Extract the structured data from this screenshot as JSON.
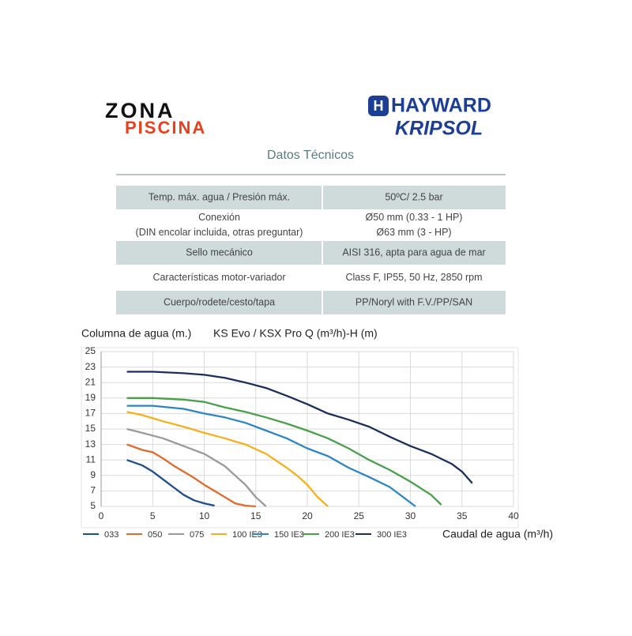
{
  "logos": {
    "left": [
      "ZONA",
      "PISCINA"
    ],
    "right": [
      "HAYWARD",
      "KRIPSOL"
    ]
  },
  "header": {
    "title": "Datos Técnicos"
  },
  "table": {
    "rows": [
      [
        [
          "Temp. máx. agua / Presión máx."
        ],
        [
          "50ºC/ 2.5 bar"
        ]
      ],
      [
        [
          "Conexión",
          "(DIN encolar incluida, otras preguntar)"
        ],
        [
          "Ø50 mm (0.33 - 1 HP)",
          "Ø63 mm (3 - HP)"
        ]
      ],
      [
        [
          "Sello mecánico"
        ],
        [
          "AISI 316, apta para agua de mar"
        ]
      ],
      [
        [
          "Características motor-variador"
        ],
        [
          "Class F, IP55, 50 Hz, 2850 rpm"
        ]
      ],
      [
        [
          "Cuerpo/rodete/cesto/tapa"
        ],
        [
          "PP/Noryl with F.V./PP/SAN"
        ]
      ]
    ]
  },
  "chart_data": {
    "type": "line",
    "title": "KS Evo / KSX Pro Q (m³/h)-H (m)",
    "y_label": "Columna de agua (m.)",
    "x_label": "Caudal de agua (m³/h)",
    "xlim": [
      0,
      40
    ],
    "ylim": [
      5,
      25
    ],
    "xticks": [
      0,
      5,
      10,
      15,
      20,
      25,
      30,
      35,
      40
    ],
    "yticks": [
      5,
      7,
      9,
      11,
      13,
      15,
      17,
      19,
      21,
      23,
      25
    ],
    "grid": true,
    "series": [
      {
        "name": "033",
        "color": "#1f4e8c",
        "x": [
          2.5,
          4,
          5,
          6,
          7,
          8,
          9,
          10,
          11
        ],
        "values": [
          11,
          10.3,
          9.5,
          8.5,
          7.5,
          6.5,
          5.8,
          5.4,
          5.1
        ]
      },
      {
        "name": "050",
        "color": "#e06a2a",
        "x": [
          2.5,
          4,
          5,
          6,
          7,
          8,
          9,
          10,
          11,
          12,
          13,
          14,
          15
        ],
        "values": [
          13,
          12.3,
          12,
          11.2,
          10.3,
          9.5,
          8.7,
          7.8,
          7,
          6.2,
          5.4,
          5.1,
          5
        ]
      },
      {
        "name": "075",
        "color": "#9a9a9a",
        "x": [
          2.5,
          4,
          6,
          8,
          10,
          12,
          13,
          14,
          15,
          16
        ],
        "values": [
          15,
          14.5,
          13.8,
          12.8,
          11.8,
          10.2,
          9,
          7.8,
          6.2,
          5
        ]
      },
      {
        "name": "100 IE3",
        "color": "#f5b021",
        "x": [
          2.5,
          4,
          6,
          8,
          10,
          12,
          14,
          16,
          18,
          19,
          20,
          21,
          22
        ],
        "values": [
          17.2,
          16.8,
          16,
          15.3,
          14.5,
          13.8,
          13,
          11.8,
          10,
          9,
          7.8,
          6.2,
          5
        ]
      },
      {
        "name": "150 IE3",
        "color": "#2e86c1",
        "x": [
          2.5,
          5,
          8,
          10,
          12,
          14,
          16,
          18,
          20,
          22,
          24,
          26,
          28,
          30.5
        ],
        "values": [
          18,
          18,
          17.6,
          17,
          16.5,
          15.8,
          14.8,
          13.8,
          12.5,
          11.5,
          10,
          8.8,
          7.5,
          5
        ]
      },
      {
        "name": "200 IE3",
        "color": "#4aa04a",
        "x": [
          2.5,
          5,
          8,
          10,
          12,
          14,
          16,
          18,
          20,
          22,
          24,
          26,
          28,
          30,
          32,
          33
        ],
        "values": [
          19,
          19,
          18.8,
          18.5,
          17.8,
          17.2,
          16.5,
          15.7,
          14.8,
          13.8,
          12.5,
          11,
          9.7,
          8.2,
          6.5,
          5.2
        ]
      },
      {
        "name": "300 IE3",
        "color": "#1c2f5a",
        "x": [
          2.5,
          5,
          8,
          10,
          12,
          14,
          16,
          18,
          20,
          22,
          24,
          26,
          28,
          30,
          32,
          34,
          35,
          36
        ],
        "values": [
          22.4,
          22.4,
          22.2,
          22,
          21.6,
          21,
          20.3,
          19.3,
          18.2,
          17,
          16.2,
          15.3,
          14,
          12.8,
          11.8,
          10.5,
          9.5,
          8
        ]
      }
    ]
  }
}
